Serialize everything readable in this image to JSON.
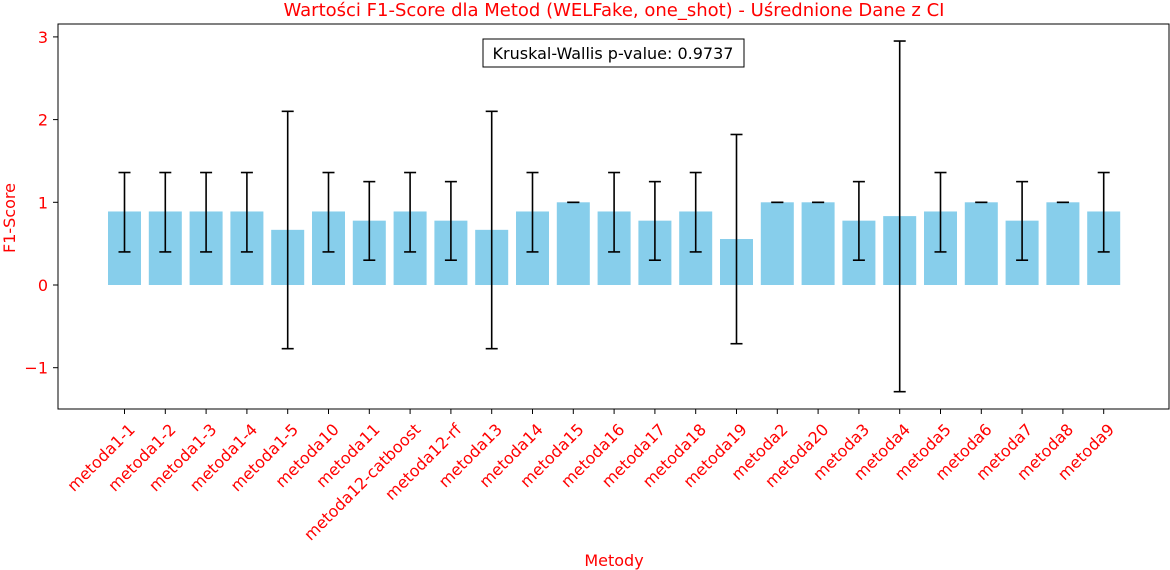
{
  "chart_data": {
    "type": "bar",
    "title": "Wartości F1-Score dla Metod (WELFake, one_shot) - Uśrednione Dane z CI",
    "xlabel": "Metody",
    "ylabel": "F1-Score",
    "ylim": [
      -1.5,
      3.2
    ],
    "yticks": [
      -1,
      0,
      1,
      2,
      3
    ],
    "ytick_labels": [
      "−1",
      "0",
      "1",
      "2",
      "3"
    ],
    "grid": false,
    "bar_color": "#87ceeb",
    "text_color": "#ff0000",
    "annotation": "Kruskal-Wallis p-value: 0.9737",
    "categories": [
      "metoda1-1",
      "metoda1-2",
      "metoda1-3",
      "metoda1-4",
      "metoda1-5",
      "metoda10",
      "metoda11",
      "metoda12-catboost",
      "metoda12-rf",
      "metoda13",
      "metoda14",
      "metoda15",
      "metoda16",
      "metoda17",
      "metoda18",
      "metoda19",
      "metoda2",
      "metoda20",
      "metoda3",
      "metoda4",
      "metoda5",
      "metoda6",
      "metoda7",
      "metoda8",
      "metoda9"
    ],
    "values": [
      0.889,
      0.889,
      0.889,
      0.889,
      0.667,
      0.889,
      0.778,
      0.889,
      0.778,
      0.667,
      0.889,
      1.0,
      0.889,
      0.778,
      0.889,
      0.556,
      1.0,
      1.0,
      0.778,
      0.833,
      0.889,
      1.0,
      0.778,
      1.0,
      0.889
    ],
    "ci_low": [
      0.4,
      0.4,
      0.4,
      0.4,
      -0.77,
      0.4,
      0.3,
      0.4,
      0.3,
      -0.77,
      0.4,
      1.0,
      0.4,
      0.3,
      0.4,
      -0.71,
      1.0,
      1.0,
      0.3,
      -1.29,
      0.4,
      1.0,
      0.3,
      1.0,
      0.4
    ],
    "ci_high": [
      1.36,
      1.36,
      1.36,
      1.36,
      2.1,
      1.36,
      1.25,
      1.36,
      1.25,
      2.1,
      1.36,
      1.0,
      1.36,
      1.25,
      1.36,
      1.82,
      1.0,
      1.0,
      1.25,
      2.95,
      1.36,
      1.0,
      1.25,
      1.0,
      1.36
    ]
  }
}
